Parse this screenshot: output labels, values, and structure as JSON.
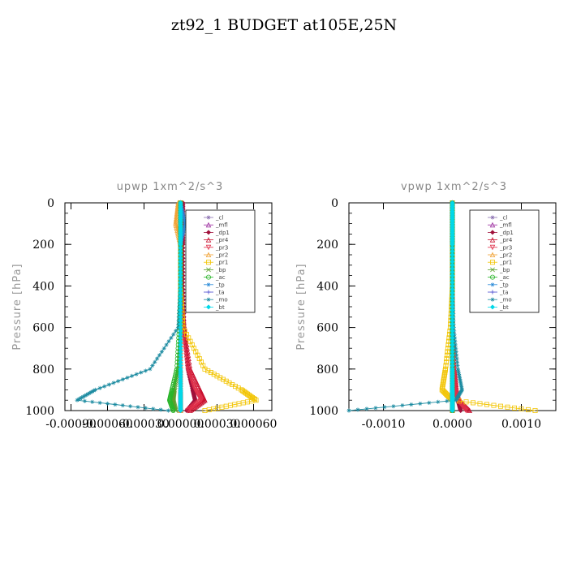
{
  "figure": {
    "suptitle": "zt92_1  BUDGET at105E,25N"
  },
  "chart_data": [
    {
      "type": "line",
      "title": "upwp   1xm^2/s^3",
      "ylabel": "Pressure [hPa]",
      "xlabel": "",
      "ylim": [
        1000,
        0
      ],
      "xlim": [
        -0.00095,
        0.00075
      ],
      "yticks": [
        0,
        200,
        400,
        600,
        800,
        1000
      ],
      "xticks": [
        -0.0009,
        -0.0006,
        -0.0003,
        0.0,
        0.0003,
        0.0006
      ],
      "xtick_labels": [
        "-0.00090",
        "-0.00060",
        "-0.00030",
        "0.00000",
        "0.00030",
        "0.00060"
      ],
      "grid": false,
      "legend": "top-right",
      "series": [
        {
          "name": "_cl",
          "color": "#8a6fb0",
          "marker": "star",
          "x": [
            0.0,
            0.0,
            0.0,
            0.0,
            0.0,
            0.0,
            0.0,
            0.0,
            0.0
          ],
          "y": [
            0,
            100,
            200,
            400,
            600,
            800,
            900,
            950,
            1000
          ]
        },
        {
          "name": "_mfl",
          "color": "#9b2a9e",
          "marker": "triangle",
          "x": [
            0.0,
            0.0,
            0.0,
            0.0,
            0.0,
            0.0,
            0.0,
            0.0,
            0.0
          ],
          "y": [
            0,
            100,
            200,
            400,
            600,
            800,
            900,
            950,
            1000
          ]
        },
        {
          "name": "_dp1",
          "color": "#a0103a",
          "marker": "diamond",
          "x": [
            2e-05,
            2e-05,
            2e-05,
            2e-05,
            3e-05,
            6e-05,
            0.0001,
            0.00012,
            5e-05
          ],
          "y": [
            0,
            100,
            200,
            400,
            600,
            800,
            900,
            950,
            1000
          ]
        },
        {
          "name": "_pr4",
          "color": "#c8102e",
          "marker": "triangle",
          "x": [
            0.0,
            0.0,
            0.0,
            0.0,
            3e-05,
            8e-05,
            0.00016,
            0.0002,
            8e-05
          ],
          "y": [
            0,
            100,
            200,
            400,
            600,
            800,
            900,
            950,
            1000
          ]
        },
        {
          "name": "_pr3",
          "color": "#e0304a",
          "marker": "triangle-down",
          "x": [
            0.0,
            0.0,
            0.0,
            0.0,
            2e-05,
            6e-05,
            0.00012,
            0.00017,
            6e-05
          ],
          "y": [
            0,
            100,
            200,
            400,
            600,
            800,
            900,
            950,
            1000
          ]
        },
        {
          "name": "_pr2",
          "color": "#f0a030",
          "marker": "triangle",
          "x": [
            -2e-05,
            -4e-05,
            0.0,
            0.0,
            0.0,
            0.0,
            0.0,
            0.0,
            0.0
          ],
          "y": [
            0,
            100,
            200,
            400,
            600,
            800,
            900,
            950,
            1000
          ]
        },
        {
          "name": "_pr1",
          "color": "#f2c400",
          "marker": "square",
          "x": [
            0.0,
            0.0,
            0.0,
            0.0,
            2e-05,
            0.0002,
            0.0005,
            0.00062,
            0.0002
          ],
          "y": [
            0,
            100,
            200,
            400,
            600,
            800,
            900,
            950,
            1000
          ]
        },
        {
          "name": "_bp",
          "color": "#5aa02c",
          "marker": "x",
          "x": [
            0.0,
            0.0,
            0.0,
            0.0,
            0.0,
            -2e-05,
            -5e-05,
            -6e-05,
            -4e-05
          ],
          "y": [
            0,
            100,
            200,
            400,
            600,
            800,
            900,
            950,
            1000
          ]
        },
        {
          "name": "_ac",
          "color": "#2ab52a",
          "marker": "circle",
          "x": [
            0.0,
            0.0,
            0.0,
            0.0,
            -1e-05,
            -3e-05,
            -7e-05,
            -9e-05,
            -6e-05
          ],
          "y": [
            0,
            100,
            200,
            400,
            600,
            800,
            900,
            950,
            1000
          ]
        },
        {
          "name": "_tp",
          "color": "#2a8ad8",
          "marker": "star",
          "x": [
            0.0,
            4e-05,
            0.0,
            0.0,
            0.0,
            0.0,
            0.0,
            0.0,
            0.0
          ],
          "y": [
            0,
            100,
            200,
            400,
            600,
            800,
            900,
            950,
            1000
          ]
        },
        {
          "name": "_ta",
          "color": "#4a4ad0",
          "marker": "plus",
          "x": [
            0.0,
            0.0,
            0.0,
            0.0,
            0.0,
            0.0,
            0.0,
            0.0,
            0.0
          ],
          "y": [
            0,
            100,
            200,
            400,
            600,
            800,
            900,
            950,
            1000
          ]
        },
        {
          "name": "_mo",
          "color": "#1a8aa0",
          "marker": "star",
          "x": [
            0.0,
            0.0,
            0.0,
            0.0,
            -2e-05,
            -0.00025,
            -0.0007,
            -0.00085,
            -0.0001
          ],
          "y": [
            0,
            100,
            200,
            400,
            600,
            800,
            900,
            950,
            1000
          ]
        },
        {
          "name": "_bt",
          "color": "#00d8e8",
          "marker": "diamond",
          "x": [
            0.0,
            0.0,
            0.0,
            0.0,
            0.0,
            0.0,
            0.0,
            0.0,
            0.0
          ],
          "y": [
            0,
            100,
            200,
            400,
            600,
            800,
            900,
            950,
            1000
          ]
        }
      ]
    },
    {
      "type": "line",
      "title": "vpwp   1xm^2/s^3",
      "ylabel": "Pressure [hPa]",
      "xlabel": "",
      "ylim": [
        1000,
        0
      ],
      "xlim": [
        -0.0015,
        0.0015
      ],
      "yticks": [
        0,
        200,
        400,
        600,
        800,
        1000
      ],
      "xticks": [
        -0.001,
        0.0,
        0.001
      ],
      "xtick_labels": [
        "-0.0010",
        "0.0000",
        "0.0010"
      ],
      "grid": false,
      "legend": "top-right",
      "series": [
        {
          "name": "_cl",
          "color": "#8a6fb0",
          "marker": "star",
          "x": [
            0.0,
            0.0,
            0.0,
            0.0,
            0.0,
            0.0,
            0.0,
            0.0,
            0.0
          ],
          "y": [
            0,
            100,
            200,
            400,
            600,
            800,
            900,
            950,
            1000
          ]
        },
        {
          "name": "_mfl",
          "color": "#9b2a9e",
          "marker": "triangle",
          "x": [
            0.0,
            0.0,
            0.0,
            0.0,
            0.0,
            0.0,
            0.0,
            0.0,
            0.0
          ],
          "y": [
            0,
            100,
            200,
            400,
            600,
            800,
            900,
            950,
            1000
          ]
        },
        {
          "name": "_dp1",
          "color": "#a0103a",
          "marker": "diamond",
          "x": [
            0.0,
            0.0,
            0.0,
            0.0,
            0.0,
            2e-05,
            5e-05,
            8e-05,
            0.00012
          ],
          "y": [
            0,
            100,
            200,
            400,
            600,
            800,
            900,
            950,
            1000
          ]
        },
        {
          "name": "_pr4",
          "color": "#c8102e",
          "marker": "triangle",
          "x": [
            0.0,
            0.0,
            0.0,
            0.0,
            0.0,
            3e-05,
            6e-05,
            0.0001,
            0.00025
          ],
          "y": [
            0,
            100,
            200,
            400,
            600,
            800,
            900,
            950,
            1000
          ]
        },
        {
          "name": "_pr3",
          "color": "#e0304a",
          "marker": "triangle-down",
          "x": [
            0.0,
            0.0,
            0.0,
            0.0,
            0.0,
            2e-05,
            4e-05,
            8e-05,
            0.0002
          ],
          "y": [
            0,
            100,
            200,
            400,
            600,
            800,
            900,
            950,
            1000
          ]
        },
        {
          "name": "_pr2",
          "color": "#f0a030",
          "marker": "triangle",
          "x": [
            0.0,
            0.0,
            0.0,
            0.0,
            0.0,
            0.0,
            0.0,
            0.0,
            0.0
          ],
          "y": [
            0,
            100,
            200,
            400,
            600,
            800,
            900,
            950,
            1000
          ]
        },
        {
          "name": "_pr1",
          "color": "#f2c400",
          "marker": "square",
          "x": [
            0.0,
            0.0,
            0.0,
            0.0,
            -3e-05,
            -0.0001,
            -0.00015,
            0.0,
            0.0012
          ],
          "y": [
            0,
            100,
            200,
            400,
            600,
            800,
            900,
            950,
            1000
          ]
        },
        {
          "name": "_bp",
          "color": "#5aa02c",
          "marker": "x",
          "x": [
            0.0,
            0.0,
            0.0,
            0.0,
            0.0,
            0.0,
            0.0,
            0.0,
            0.0
          ],
          "y": [
            0,
            100,
            200,
            400,
            600,
            800,
            900,
            950,
            1000
          ]
        },
        {
          "name": "_ac",
          "color": "#2ab52a",
          "marker": "circle",
          "x": [
            0.0,
            0.0,
            0.0,
            0.0,
            0.0,
            0.0,
            0.0,
            0.0,
            0.0
          ],
          "y": [
            0,
            100,
            200,
            400,
            600,
            800,
            900,
            950,
            1000
          ]
        },
        {
          "name": "_tp",
          "color": "#2a8ad8",
          "marker": "star",
          "x": [
            0.0,
            0.0,
            0.0,
            0.0,
            0.0,
            0.0,
            0.0,
            0.0,
            0.0
          ],
          "y": [
            0,
            100,
            200,
            400,
            600,
            800,
            900,
            950,
            1000
          ]
        },
        {
          "name": "_ta",
          "color": "#4a4ad0",
          "marker": "plus",
          "x": [
            0.0,
            0.0,
            0.0,
            0.0,
            0.0,
            0.0,
            0.0,
            0.0,
            0.0
          ],
          "y": [
            0,
            100,
            200,
            400,
            600,
            800,
            900,
            950,
            1000
          ]
        },
        {
          "name": "_mo",
          "color": "#1a8aa0",
          "marker": "star",
          "x": [
            0.0,
            0.0,
            0.0,
            0.0,
            2e-05,
            8e-05,
            0.00014,
            5e-05,
            -0.0015
          ],
          "y": [
            0,
            100,
            200,
            400,
            600,
            800,
            900,
            950,
            1000
          ]
        },
        {
          "name": "_bt",
          "color": "#00d8e8",
          "marker": "diamond",
          "x": [
            0.0,
            0.0,
            0.0,
            0.0,
            0.0,
            0.0,
            0.0,
            0.0,
            0.0
          ],
          "y": [
            0,
            100,
            200,
            400,
            600,
            800,
            900,
            950,
            1000
          ]
        }
      ]
    }
  ]
}
